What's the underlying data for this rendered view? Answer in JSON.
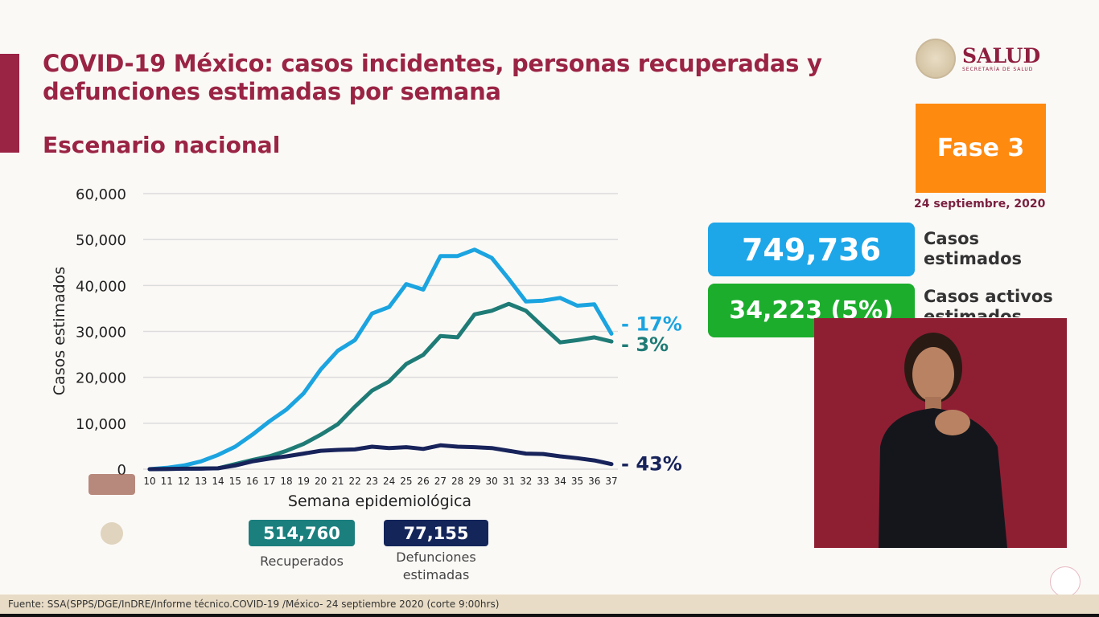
{
  "header": {
    "title_line1": "COVID-19 México: casos incidentes, personas recuperadas y",
    "title_line2": "defunciones estimadas por semana",
    "subtitle": "Escenario nacional"
  },
  "logo": {
    "name": "SALUD",
    "sub": "SECRETARÍA DE SALUD"
  },
  "phase": {
    "label": "Fase 3",
    "date": "24 septiembre, 2020",
    "color": "#ff8a10"
  },
  "kpis": {
    "casos": {
      "value": "749,736",
      "label1": "Casos",
      "label2": "estimados",
      "color": "#1da6e8"
    },
    "activos": {
      "value": "34,223 (5%)",
      "label1": "Casos activos",
      "label2": "estimados",
      "color": "#1cad2c"
    },
    "recuperados": {
      "value": "514,760",
      "label": "Recuperados",
      "color": "#1b7f7e"
    },
    "defunciones": {
      "value": "77,155",
      "label1": "Defunciones",
      "label2": "estimadas",
      "color": "#14255a"
    }
  },
  "footer": "Fuente: SSA(SPPS/DGE/InDRE/Informe técnico.COVID-19 /México- 24 septiembre 2020 (corte 9:00hrs)",
  "chart_data": {
    "type": "line",
    "xlabel": "Semana epidemiológica",
    "ylabel": "Casos estimados",
    "ylim": [
      0,
      60000
    ],
    "yticks": [
      "0",
      "10,000",
      "20,000",
      "30,000",
      "40,000",
      "50,000",
      "60,000"
    ],
    "ytick_values": [
      0,
      10000,
      20000,
      30000,
      40000,
      50000,
      60000
    ],
    "grid": true,
    "x": [
      10,
      11,
      12,
      13,
      14,
      15,
      16,
      17,
      18,
      19,
      20,
      21,
      22,
      23,
      24,
      25,
      26,
      27,
      28,
      29,
      30,
      31,
      32,
      33,
      34,
      35,
      36,
      37
    ],
    "series": [
      {
        "color": "#1ba4e0",
        "end_label": "- 17%",
        "values": [
          0,
          300,
          800,
          1700,
          3100,
          4900,
          7500,
          10400,
          13000,
          16500,
          21700,
          25800,
          28100,
          33900,
          35300,
          40300,
          39100,
          46400,
          46400,
          47800,
          46000,
          41400,
          36500,
          36700,
          37300,
          35600,
          35900,
          29500
        ]
      },
      {
        "color": "#1f7b76",
        "end_label": "- 3%",
        "values": [
          0,
          50,
          100,
          150,
          200,
          1100,
          2000,
          2800,
          4000,
          5500,
          7500,
          9800,
          13600,
          17100,
          19100,
          22900,
          24900,
          29000,
          28700,
          33700,
          34500,
          36000,
          34500,
          31000,
          27600,
          28100,
          28700,
          27800
        ]
      },
      {
        "color": "#17235a",
        "end_label": "- 43%",
        "values": [
          0,
          50,
          100,
          100,
          200,
          800,
          1700,
          2300,
          2800,
          3400,
          4000,
          4200,
          4300,
          4900,
          4600,
          4800,
          4400,
          5200,
          4900,
          4800,
          4600,
          4000,
          3400,
          3300,
          2800,
          2400,
          1900,
          1100
        ]
      }
    ]
  }
}
